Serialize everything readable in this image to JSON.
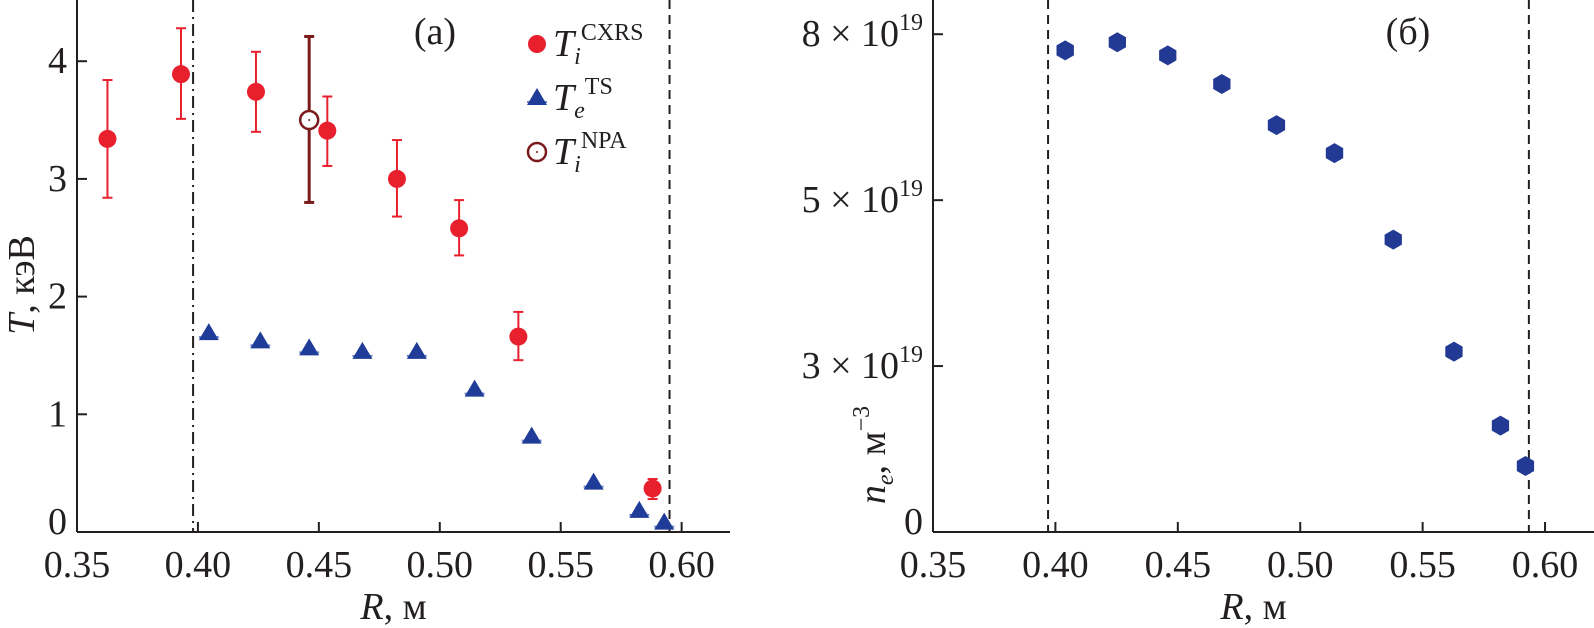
{
  "chart_data": [
    {
      "type": "scatter",
      "panel_label": "(a)",
      "xlabel": "R",
      "xlabel_unit": ", м",
      "ylabel": "T",
      "ylabel_unit": ", кэВ",
      "xlim": [
        0.35,
        0.62
      ],
      "ylim": [
        0,
        4.52
      ],
      "xticks": [
        0.35,
        0.4,
        0.45,
        0.5,
        0.55,
        0.6
      ],
      "xtick_labels": [
        "0.35",
        "0.40",
        "0.45",
        "0.50",
        "0.55",
        "0.60"
      ],
      "yticks": [
        0,
        1,
        2,
        3,
        4
      ],
      "ytick_labels": [
        "0",
        "1",
        "2",
        "3",
        "4"
      ],
      "vlines": [
        {
          "x": 0.398,
          "style": "dashdot"
        },
        {
          "x": 0.595,
          "style": "dashed"
        }
      ],
      "legend_position": "top-right",
      "series": [
        {
          "name": "Ti CXRS",
          "sym": "T",
          "sub": "i",
          "sup": "CXRS",
          "marker": "circle",
          "color": "#e8202e",
          "x": [
            0.3626,
            0.393,
            0.424,
            0.4535,
            0.4823,
            0.508,
            0.5325,
            0.588
          ],
          "y": [
            3.34,
            3.89,
            3.74,
            3.41,
            3.0,
            2.58,
            1.66,
            0.37
          ],
          "yerr_low": [
            2.84,
            3.51,
            3.4,
            3.11,
            2.68,
            2.35,
            1.46,
            0.28
          ],
          "yerr_high": [
            3.84,
            4.28,
            4.08,
            3.7,
            3.33,
            2.82,
            1.87,
            0.45
          ]
        },
        {
          "name": "Te TS",
          "sym": "T",
          "sub": "e",
          "sup": "TS",
          "marker": "triangle",
          "color": "#1f3c98",
          "x": [
            0.4045,
            0.4258,
            0.446,
            0.468,
            0.4905,
            0.5144,
            0.538,
            0.5636,
            0.5825,
            0.5928
          ],
          "y": [
            1.69,
            1.62,
            1.56,
            1.53,
            1.53,
            1.21,
            0.81,
            0.42,
            0.18,
            0.08
          ]
        },
        {
          "name": "Ti NPA",
          "sym": "T",
          "sub": "i",
          "sup": "NPA",
          "marker": "open-circle",
          "color": "#7a1a1a",
          "x": [
            0.446
          ],
          "y": [
            3.5
          ],
          "yerr_low": [
            2.8
          ],
          "yerr_high": [
            4.21
          ]
        }
      ]
    },
    {
      "type": "scatter",
      "panel_label": "(б)",
      "xlabel": "R",
      "xlabel_unit": ", м",
      "ylabel": "n",
      "ylabel_sub": "e",
      "ylabel_unit": ", м",
      "ylabel_unit_sup": "−3",
      "xlim": [
        0.35,
        0.62
      ],
      "ylim": [
        0,
        8.55
      ],
      "y_unit": "1e19",
      "xticks": [
        0.35,
        0.4,
        0.45,
        0.5,
        0.55,
        0.6
      ],
      "xtick_labels": [
        "0.35",
        "0.40",
        "0.45",
        "0.50",
        "0.55",
        "0.60"
      ],
      "yticks": [
        0,
        2.667,
        5.333,
        8
      ],
      "ytick_labels": [
        "0",
        "3 × 10",
        "5 × 10",
        "8 × 10"
      ],
      "ytick_exp": [
        "",
        "19",
        "19",
        "19"
      ],
      "vlines": [
        {
          "x": 0.397,
          "style": "dashed"
        },
        {
          "x": 0.5934,
          "style": "dashed"
        }
      ],
      "series": [
        {
          "name": "ne",
          "marker": "hexagon",
          "color": "#233a94",
          "x": [
            0.404,
            0.4253,
            0.4459,
            0.468,
            0.4903,
            0.514,
            0.538,
            0.5628,
            0.5818,
            0.592
          ],
          "y": [
            7.74,
            7.87,
            7.66,
            7.2,
            6.54,
            6.09,
            4.7,
            2.9,
            1.71,
            1.06
          ]
        }
      ]
    }
  ]
}
